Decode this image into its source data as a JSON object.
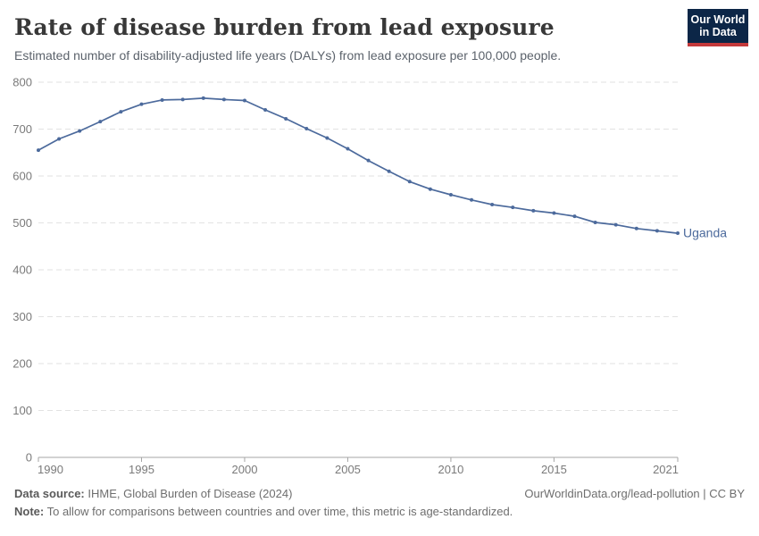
{
  "header": {
    "title": "Rate of disease burden from lead exposure",
    "subtitle": "Estimated number of disability-adjusted life years (DALYs) from lead exposure per 100,000 people.",
    "logo": {
      "line1": "Our World",
      "line2": "in Data",
      "bg_color": "#0c2647",
      "accent_color": "#c4393b"
    }
  },
  "chart_data": {
    "type": "line",
    "title": "Rate of disease burden from lead exposure",
    "subtitle": "Estimated number of disability-adjusted life years (DALYs) from lead exposure per 100,000 people.",
    "xlabel": "",
    "ylabel": "",
    "xlim": [
      1990,
      2021
    ],
    "ylim": [
      0,
      800
    ],
    "x_ticks": [
      1990,
      1995,
      2000,
      2005,
      2010,
      2015,
      2021
    ],
    "y_ticks": [
      0,
      100,
      200,
      300,
      400,
      500,
      600,
      700,
      800
    ],
    "grid": "horizontal-dashed",
    "grid_color": "#e2e2e2",
    "axis_color": "#a5a5a5",
    "tick_label_color": "#7a7a7a",
    "legend_position": "end-of-line-label",
    "series": [
      {
        "name": "Uganda",
        "color": "#4c6a9c",
        "x": [
          1990,
          1991,
          1992,
          1993,
          1994,
          1995,
          1996,
          1997,
          1998,
          1999,
          2000,
          2001,
          2002,
          2003,
          2004,
          2005,
          2006,
          2007,
          2008,
          2009,
          2010,
          2011,
          2012,
          2013,
          2014,
          2015,
          2016,
          2017,
          2018,
          2019,
          2020,
          2021
        ],
        "values": [
          655,
          679,
          696,
          716,
          737,
          753,
          762,
          763,
          766,
          763,
          761,
          741,
          722,
          701,
          681,
          658,
          633,
          610,
          588,
          572,
          560,
          549,
          539,
          533,
          526,
          521,
          514,
          501,
          496,
          488,
          483,
          478
        ]
      }
    ]
  },
  "footer": {
    "source_label": "Data source:",
    "source_text": " IHME, Global Burden of Disease (2024)",
    "credit": "OurWorldinData.org/lead-pollution | CC BY",
    "note_label": "Note:",
    "note_text": " To allow for comparisons between countries and over time, this metric is age-standardized."
  }
}
